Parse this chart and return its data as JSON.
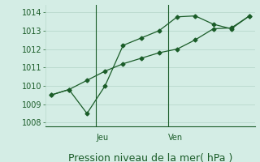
{
  "bg_color": "#d4ede5",
  "grid_color": "#b8d8cc",
  "line_color": "#1a5c28",
  "line1_x": [
    0,
    1,
    2,
    3,
    4,
    5,
    6,
    7,
    8,
    9,
    10,
    11
  ],
  "line1_y": [
    1009.5,
    1009.8,
    1008.5,
    1010.0,
    1012.2,
    1012.6,
    1013.0,
    1013.75,
    1013.8,
    1013.35,
    1013.1,
    1013.8
  ],
  "line2_x": [
    0,
    1,
    2,
    3,
    4,
    5,
    6,
    7,
    8,
    9,
    10,
    11
  ],
  "line2_y": [
    1009.5,
    1009.8,
    1010.3,
    1010.8,
    1011.2,
    1011.5,
    1011.8,
    1012.0,
    1012.5,
    1013.1,
    1013.15,
    1013.8
  ],
  "ylim": [
    1007.8,
    1014.4
  ],
  "yticks": [
    1008,
    1009,
    1010,
    1011,
    1012,
    1013,
    1014
  ],
  "xlim": [
    -0.3,
    11.3
  ],
  "vline1_x": 2.5,
  "vline2_x": 6.5,
  "vline_label1": "Jeu",
  "vline_label2": "Ven",
  "xlabel": "Pression niveau de la mer( hPa )",
  "xlabel_fontsize": 9,
  "tick_fontsize": 7,
  "markersize": 2.5
}
